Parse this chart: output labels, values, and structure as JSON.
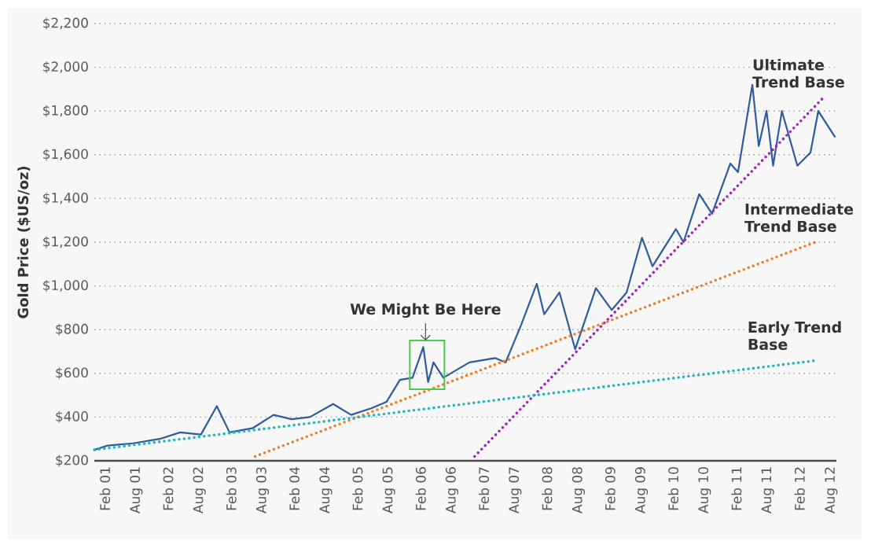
{
  "chart_data": {
    "type": "line",
    "ylabel": "Gold Price ($US/oz)",
    "x": [
      "2000-12-01",
      "2001-02-18",
      "2001-07-15",
      "2001-12-15",
      "2002-04-12",
      "2002-08-10",
      "2002-11-10",
      "2003-01-22",
      "2003-06-07",
      "2003-10-04",
      "2004-01-16",
      "2004-05-01",
      "2004-09-12",
      "2004-12-25",
      "2005-04-21",
      "2005-07-19",
      "2005-10-04",
      "2005-12-16",
      "2006-02-16",
      "2006-03-16",
      "2006-04-16",
      "2006-06-12",
      "2006-11-10",
      "2007-04-07",
      "2007-06-07",
      "2007-09-04",
      "2007-12-04",
      "2008-01-16",
      "2008-04-13",
      "2008-07-13",
      "2008-11-10",
      "2009-02-10",
      "2009-05-07",
      "2009-08-04",
      "2009-10-04",
      "2010-02-16",
      "2010-04-01",
      "2010-07-01",
      "2010-09-13",
      "2010-12-28",
      "2011-02-10",
      "2011-05-04",
      "2011-06-10",
      "2011-07-25",
      "2011-09-01",
      "2011-10-22",
      "2012-01-19",
      "2012-04-04",
      "2012-05-19",
      "2012-08-25"
    ],
    "series": [
      {
        "color": "#2d5b9e",
        "line_style": "solid",
        "values": [
          250,
          270,
          280,
          300,
          330,
          320,
          450,
          330,
          350,
          410,
          390,
          400,
          460,
          410,
          440,
          470,
          570,
          580,
          720,
          560,
          650,
          580,
          650,
          670,
          650,
          820,
          1010,
          870,
          970,
          710,
          990,
          890,
          970,
          1220,
          1090,
          1260,
          1200,
          1420,
          1330,
          1560,
          1520,
          1920,
          1640,
          1800,
          1550,
          1800,
          1550,
          1610,
          1800,
          1680
        ]
      },
      {
        "name": "Ultimate Trend Base",
        "color": "#a020c0",
        "line_style": "dotted",
        "x": [
          "2006-12-10",
          "2012-06-16"
        ],
        "values": [
          220,
          1860
        ]
      },
      {
        "name": "Intermediate Trend Base",
        "color": "#f47b20",
        "line_style": "dotted",
        "x": [
          "2003-06-19",
          "2012-05-01"
        ],
        "values": [
          220,
          1200
        ]
      },
      {
        "name": "Early Trend Base",
        "color": "#1bb5c4",
        "line_style": "dotted",
        "x": [
          "2000-12-01",
          "2012-05-19"
        ],
        "values": [
          250,
          660
        ]
      }
    ],
    "annotations": [
      {
        "text": "We Might Be Here",
        "x": "2006-03-01",
        "y": 750
      }
    ],
    "xlim": [
      "2000-12-01",
      "2012-09-01"
    ],
    "ylim": [
      200,
      2200
    ],
    "xticks": [
      {
        "value": "2001-02",
        "label": "Feb 01"
      },
      {
        "value": "2001-08",
        "label": "Aug 01"
      },
      {
        "value": "2002-02",
        "label": "Feb 02"
      },
      {
        "value": "2002-08",
        "label": "Aug 02"
      },
      {
        "value": "2003-02",
        "label": "Feb 03"
      },
      {
        "value": "2003-08",
        "label": "Aug 03"
      },
      {
        "value": "2004-02",
        "label": "Feb 04"
      },
      {
        "value": "2004-08",
        "label": "Aug 04"
      },
      {
        "value": "2005-02",
        "label": "Feb 05"
      },
      {
        "value": "2005-08",
        "label": "Aug 05"
      },
      {
        "value": "2006-02",
        "label": "Feb 06"
      },
      {
        "value": "2006-08",
        "label": "Aug 06"
      },
      {
        "value": "2007-02",
        "label": "Feb 07"
      },
      {
        "value": "2007-08",
        "label": "Aug 07"
      },
      {
        "value": "2008-02",
        "label": "Feb 08"
      },
      {
        "value": "2008-08",
        "label": "Aug 08"
      },
      {
        "value": "2009-02",
        "label": "Feb 09"
      },
      {
        "value": "2009-08",
        "label": "Aug 09"
      },
      {
        "value": "2010-02",
        "label": "Feb 10"
      },
      {
        "value": "2010-08",
        "label": "Aug 10"
      },
      {
        "value": "2011-02",
        "label": "Feb 11"
      },
      {
        "value": "2011-08",
        "label": "Aug 11"
      },
      {
        "value": "2012-02",
        "label": "Feb 12"
      },
      {
        "value": "2012-08",
        "label": "Aug 12"
      }
    ],
    "yticks": [
      {
        "value": 200,
        "label": "$200"
      },
      {
        "value": 400,
        "label": "$400"
      },
      {
        "value": 600,
        "label": "$600"
      },
      {
        "value": 800,
        "label": "$800"
      },
      {
        "value": 1000,
        "label": "$1,000"
      },
      {
        "value": 1200,
        "label": "$1,200"
      },
      {
        "value": 1400,
        "label": "$1,400"
      },
      {
        "value": 1600,
        "label": "$1,600"
      },
      {
        "value": 1800,
        "label": "$1,800"
      },
      {
        "value": 2000,
        "label": "$2,000"
      },
      {
        "value": 2200,
        "label": "$2,200"
      }
    ],
    "grid": "y"
  }
}
